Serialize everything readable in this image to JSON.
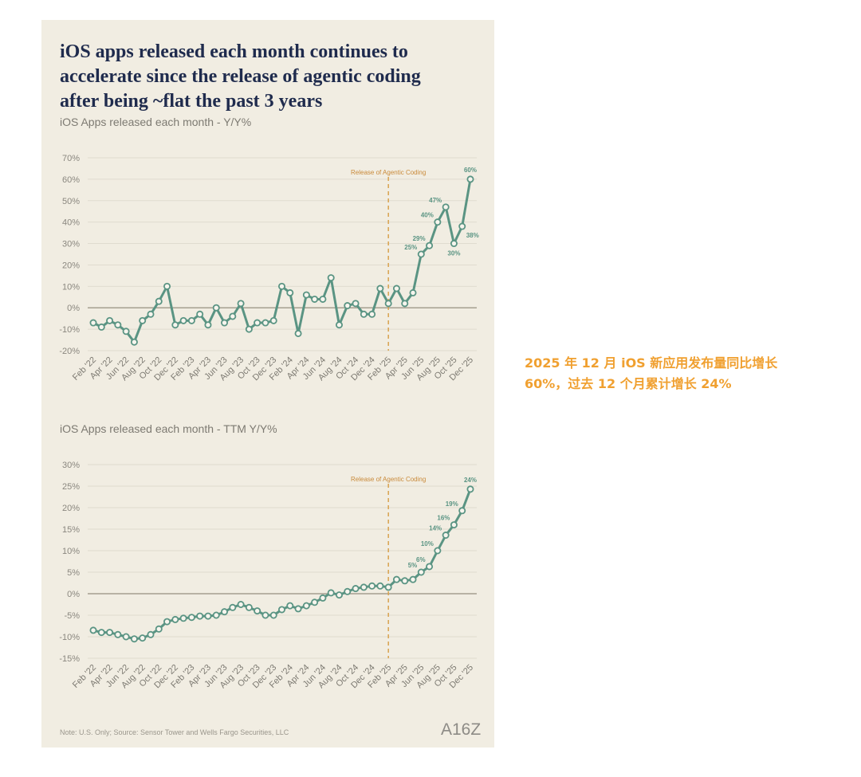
{
  "header": {
    "title": "iOS apps released each month continues to accelerate since the release of agentic coding after being ~flat the past 3 years"
  },
  "chart_data": [
    {
      "type": "line",
      "title": "iOS Apps released each month - Y/Y%",
      "categories": [
        "Feb '22",
        null,
        "Apr '22",
        null,
        "Jun '22",
        null,
        "Aug '22",
        null,
        "Oct '22",
        null,
        "Dec '22",
        null,
        "Feb '23",
        null,
        "Apr '23",
        null,
        "Jun '23",
        null,
        "Aug '23",
        null,
        "Oct '23",
        null,
        "Dec '23",
        null,
        "Feb '24",
        null,
        "Apr '24",
        null,
        "Jun '24",
        null,
        "Aug '24",
        null,
        "Oct '24",
        null,
        "Dec '24",
        null,
        "Feb '25",
        null,
        "Apr '25",
        null,
        "Jun '25",
        null,
        "Aug '25",
        null,
        "Oct '25",
        null,
        "Dec '25"
      ],
      "values": [
        -7,
        -9,
        -6,
        -8,
        -11,
        -16,
        -6,
        -3,
        3,
        10,
        -8,
        -6,
        -6,
        -3,
        -8,
        0,
        -7,
        -4,
        2,
        -10,
        -7,
        -7,
        -6,
        10,
        7,
        -12,
        6,
        4,
        4,
        14,
        -8,
        1,
        2,
        -3,
        -3,
        9,
        2,
        9,
        2,
        7,
        25,
        29,
        40,
        47,
        30,
        38,
        60
      ],
      "value_labels": [
        null,
        null,
        null,
        null,
        null,
        null,
        null,
        null,
        null,
        null,
        null,
        null,
        null,
        null,
        null,
        null,
        null,
        null,
        null,
        null,
        null,
        null,
        null,
        null,
        null,
        null,
        null,
        null,
        null,
        null,
        null,
        null,
        null,
        null,
        null,
        null,
        null,
        null,
        null,
        null,
        "25%",
        "29%",
        "40%",
        "47%",
        "30%",
        "38%",
        "60%"
      ],
      "color": "#5a9483",
      "ylim": [
        -20,
        70
      ],
      "yticks": [
        {
          "value": -20,
          "label": "-20%"
        },
        {
          "value": -10,
          "label": "-10%"
        },
        {
          "value": 0,
          "label": "0%"
        },
        {
          "value": 10,
          "label": "10%"
        },
        {
          "value": 20,
          "label": "20%"
        },
        {
          "value": 30,
          "label": "30%"
        },
        {
          "value": 40,
          "label": "40%"
        },
        {
          "value": 50,
          "label": "50%"
        },
        {
          "value": 60,
          "label": "60%"
        },
        {
          "value": 70,
          "label": "70%"
        }
      ],
      "grid": true,
      "annotation": {
        "text": "Release of Agentic Coding",
        "category": "Feb '25"
      }
    },
    {
      "type": "line",
      "title": "iOS Apps released each month - TTM Y/Y%",
      "categories": [
        "Feb '22",
        null,
        "Apr '22",
        null,
        "Jun '22",
        null,
        "Aug '22",
        null,
        "Oct '22",
        null,
        "Dec '22",
        null,
        "Feb '23",
        null,
        "Apr '23",
        null,
        "Jun '23",
        null,
        "Aug '23",
        null,
        "Oct '23",
        null,
        "Dec '23",
        null,
        "Feb '24",
        null,
        "Apr '24",
        null,
        "Jun '24",
        null,
        "Aug '24",
        null,
        "Oct '24",
        null,
        "Dec '24",
        null,
        "Feb '25",
        null,
        "Apr '25",
        null,
        "Jun '25",
        null,
        "Aug '25",
        null,
        "Oct '25",
        null,
        "Dec '25"
      ],
      "values": [
        -8.5,
        -9,
        -9,
        -9.5,
        -10,
        -10.5,
        -10.3,
        -9.5,
        -8.2,
        -6.5,
        -6,
        -5.7,
        -5.5,
        -5.2,
        -5.2,
        -5,
        -4.2,
        -3.2,
        -2.5,
        -3.2,
        -4,
        -5,
        -5,
        -3.7,
        -2.8,
        -3.5,
        -2.8,
        -2,
        -1,
        0.2,
        -0.3,
        0.5,
        1.2,
        1.5,
        1.8,
        1.8,
        1.5,
        3.3,
        3,
        3.3,
        5,
        6.3,
        10,
        13.6,
        16,
        19.3,
        24.3
      ],
      "value_labels": [
        null,
        null,
        null,
        null,
        null,
        null,
        null,
        null,
        null,
        null,
        null,
        null,
        null,
        null,
        null,
        null,
        null,
        null,
        null,
        null,
        null,
        null,
        null,
        null,
        null,
        null,
        null,
        null,
        null,
        null,
        null,
        null,
        null,
        null,
        null,
        null,
        null,
        null,
        null,
        null,
        "5%",
        "6%",
        "10%",
        "14%",
        "16%",
        "19%",
        "24%"
      ],
      "color": "#5a9483",
      "ylim": [
        -15,
        30
      ],
      "yticks": [
        {
          "value": -15,
          "label": "-15%"
        },
        {
          "value": -10,
          "label": "-10%"
        },
        {
          "value": -5,
          "label": "-5%"
        },
        {
          "value": 0,
          "label": "0%"
        },
        {
          "value": 5,
          "label": "5%"
        },
        {
          "value": 10,
          "label": "10%"
        },
        {
          "value": 15,
          "label": "15%"
        },
        {
          "value": 20,
          "label": "20%"
        },
        {
          "value": 25,
          "label": "25%"
        },
        {
          "value": 30,
          "label": "30%"
        }
      ],
      "grid": true,
      "annotation": {
        "text": "Release of Agentic Coding",
        "category": "Feb '25"
      }
    }
  ],
  "footer": {
    "note": "Note: U.S. Only; Source: Sensor Tower and Wells Fargo Securities, LLC",
    "logo": "A16Z"
  },
  "side_note": "2025 年 12 月 iOS 新应用发布量同比增长 60%，过去 12 个月累计增长 24%"
}
